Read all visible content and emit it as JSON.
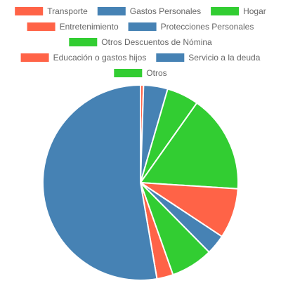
{
  "colors": {
    "red": "#ff6347",
    "blue": "#4682b4",
    "green": "#32cd32",
    "slice_border": "#ffffff",
    "legend_text": "#666666"
  },
  "chart_data": {
    "type": "pie",
    "title": "",
    "legend_placement": "top",
    "slices": [
      {
        "label": "Transporte",
        "value": 0.5,
        "color": "#ff6347"
      },
      {
        "label": "Gastos Personales",
        "value": 4.0,
        "color": "#4682b4"
      },
      {
        "label": "Hogar",
        "value": 5.3,
        "color": "#32cd32"
      },
      {
        "label": "Entretenimiento",
        "value": 0.0,
        "color": "#ff6347"
      },
      {
        "label": "Protecciones Personales",
        "value": 0.0,
        "color": "#4682b4"
      },
      {
        "label": "Otros Descuentos de Nómina",
        "value": 16.2,
        "color": "#32cd32"
      },
      {
        "label": "Educación o gastos hijos",
        "value": 8.3,
        "color": "#ff6347"
      },
      {
        "label": "Servicio a la deuda",
        "value": 3.3,
        "color": "#4682b4"
      },
      {
        "label": "Otros",
        "value": 7.0,
        "color": "#32cd32"
      },
      {
        "label": "",
        "value": 2.7,
        "color": "#ff6347"
      },
      {
        "label": "",
        "value": 52.7,
        "color": "#4682b4"
      }
    ]
  }
}
